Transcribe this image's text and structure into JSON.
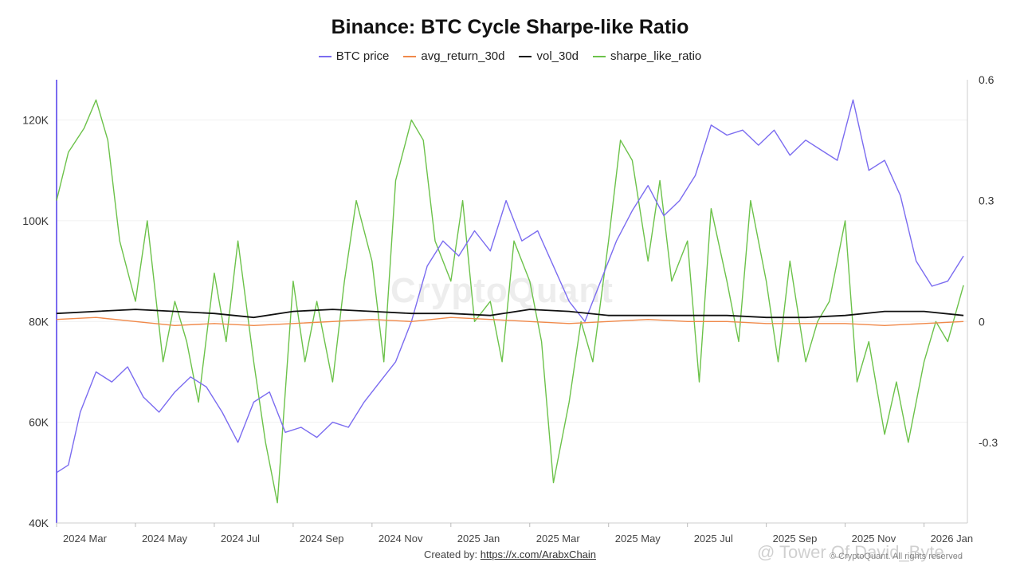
{
  "header": {
    "title": "Binance: BTC Cycle Sharpe-like Ratio"
  },
  "legend": [
    {
      "label": "BTC price",
      "color": "#7b6cf0"
    },
    {
      "label": "avg_return_30d",
      "color": "#f0894a"
    },
    {
      "label": "vol_30d",
      "color": "#111111"
    },
    {
      "label": "sharpe_like_ratio",
      "color": "#6cc24a"
    }
  ],
  "footer": {
    "created_by": "Created by:",
    "link": "https://x.com/ArabxChain",
    "copyright": "© CryptoQuant. All rights reserved",
    "overlay": "@ Tower Of David_Byte ..."
  },
  "watermark": "CryptoQuant",
  "chart_data": {
    "type": "line",
    "title": "Binance: BTC Cycle Sharpe-like Ratio",
    "x_ticks": [
      "2024 Mar",
      "2024 May",
      "2024 Jul",
      "2024 Sep",
      "2024 Nov",
      "2025 Jan",
      "2025 Mar",
      "2025 May",
      "2025 Jul",
      "2025 Sep",
      "2025 Nov",
      "2026 Jan"
    ],
    "x_range": [
      0,
      23.1
    ],
    "y_left": {
      "ticks": [
        40000,
        60000,
        80000,
        100000,
        120000
      ],
      "tick_labels": [
        "40K",
        "60K",
        "80K",
        "100K",
        "120K"
      ],
      "range": [
        40000,
        128000
      ]
    },
    "y_right": {
      "ticks": [
        -0.3,
        0,
        0.3,
        0.6
      ],
      "tick_labels": [
        "-0.3",
        "0",
        "0.3",
        "0.6"
      ],
      "range": [
        -0.5,
        0.6
      ]
    },
    "series": [
      {
        "name": "BTC price",
        "axis": "left",
        "color": "#7b6cf0",
        "x": [
          0,
          0.3,
          0.6,
          1.0,
          1.4,
          1.8,
          2.2,
          2.6,
          3.0,
          3.4,
          3.8,
          4.2,
          4.6,
          5.0,
          5.4,
          5.8,
          6.2,
          6.6,
          7.0,
          7.4,
          7.8,
          8.2,
          8.6,
          9.0,
          9.4,
          9.8,
          10.2,
          10.6,
          11.0,
          11.4,
          11.8,
          12.2,
          12.6,
          13.0,
          13.4,
          13.8,
          14.2,
          14.6,
          15.0,
          15.4,
          15.8,
          16.2,
          16.6,
          17.0,
          17.4,
          17.8,
          18.2,
          18.6,
          19.0,
          19.4,
          19.8,
          20.2,
          20.6,
          21.0,
          21.4,
          21.8,
          22.2,
          22.6,
          23.0
        ],
        "values": [
          50000,
          51500,
          62000,
          70000,
          68000,
          71000,
          65000,
          62000,
          66000,
          69000,
          67000,
          62000,
          56000,
          64000,
          66000,
          58000,
          59000,
          57000,
          60000,
          59000,
          64000,
          68000,
          72000,
          80000,
          91000,
          96000,
          93000,
          98000,
          94000,
          104000,
          96000,
          98000,
          91000,
          84000,
          80000,
          88000,
          96000,
          102000,
          107000,
          101000,
          104000,
          109000,
          119000,
          117000,
          118000,
          115000,
          118000,
          113000,
          116000,
          114000,
          112000,
          124000,
          110000,
          112000,
          105000,
          92000,
          87000,
          88000,
          93000
        ]
      },
      {
        "name": "avg_return_30d",
        "axis": "right",
        "color": "#f0894a",
        "x": [
          0,
          1,
          2,
          3,
          4,
          5,
          6,
          7,
          8,
          9,
          10,
          11,
          12,
          13,
          14,
          15,
          16,
          17,
          18,
          19,
          20,
          21,
          22,
          23
        ],
        "values": [
          0.005,
          0.01,
          0.0,
          -0.01,
          -0.005,
          -0.01,
          -0.005,
          0.0,
          0.005,
          0.0,
          0.01,
          0.005,
          0.0,
          -0.005,
          0.0,
          0.005,
          0.0,
          0.0,
          -0.005,
          -0.005,
          -0.005,
          -0.01,
          -0.005,
          0.0
        ]
      },
      {
        "name": "vol_30d",
        "axis": "right",
        "color": "#111111",
        "x": [
          0,
          1,
          2,
          3,
          4,
          5,
          6,
          7,
          8,
          9,
          10,
          11,
          12,
          13,
          14,
          15,
          16,
          17,
          18,
          19,
          20,
          21,
          22,
          23
        ],
        "values": [
          0.02,
          0.025,
          0.03,
          0.025,
          0.02,
          0.01,
          0.025,
          0.03,
          0.025,
          0.02,
          0.02,
          0.015,
          0.03,
          0.025,
          0.015,
          0.015,
          0.015,
          0.015,
          0.01,
          0.01,
          0.015,
          0.025,
          0.025,
          0.015
        ]
      },
      {
        "name": "sharpe_like_ratio",
        "axis": "right",
        "color": "#6cc24a",
        "x": [
          0,
          0.3,
          0.7,
          1.0,
          1.3,
          1.6,
          2.0,
          2.3,
          2.7,
          3.0,
          3.3,
          3.6,
          4.0,
          4.3,
          4.6,
          5.0,
          5.3,
          5.6,
          6.0,
          6.3,
          6.6,
          7.0,
          7.3,
          7.6,
          8.0,
          8.3,
          8.6,
          9.0,
          9.3,
          9.6,
          10.0,
          10.3,
          10.6,
          11.0,
          11.3,
          11.6,
          12.0,
          12.3,
          12.6,
          13.0,
          13.3,
          13.6,
          14.0,
          14.3,
          14.6,
          15.0,
          15.3,
          15.6,
          16.0,
          16.3,
          16.6,
          17.0,
          17.3,
          17.6,
          18.0,
          18.3,
          18.6,
          19.0,
          19.3,
          19.6,
          20.0,
          20.3,
          20.6,
          21.0,
          21.3,
          21.6,
          22.0,
          22.3,
          22.6,
          23.0
        ],
        "values": [
          0.3,
          0.42,
          0.48,
          0.55,
          0.45,
          0.2,
          0.05,
          0.25,
          -0.1,
          0.05,
          -0.05,
          -0.2,
          0.12,
          -0.05,
          0.2,
          -0.1,
          -0.3,
          -0.45,
          0.1,
          -0.1,
          0.05,
          -0.15,
          0.1,
          0.3,
          0.15,
          -0.1,
          0.35,
          0.5,
          0.45,
          0.2,
          0.1,
          0.3,
          0.0,
          0.05,
          -0.1,
          0.2,
          0.1,
          -0.05,
          -0.4,
          -0.2,
          0.0,
          -0.1,
          0.2,
          0.45,
          0.4,
          0.15,
          0.35,
          0.1,
          0.2,
          -0.15,
          0.28,
          0.1,
          -0.05,
          0.3,
          0.1,
          -0.1,
          0.15,
          -0.1,
          0.0,
          0.05,
          0.25,
          -0.15,
          -0.05,
          -0.28,
          -0.15,
          -0.3,
          -0.1,
          0.0,
          -0.05,
          0.09
        ]
      }
    ]
  }
}
